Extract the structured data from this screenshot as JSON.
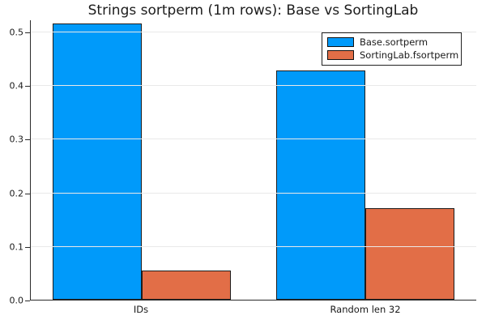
{
  "chart_data": {
    "type": "bar",
    "title": "Strings sortperm (1m rows): Base vs SortingLab",
    "categories": [
      "IDs",
      "Random len 32"
    ],
    "series": [
      {
        "name": "Base.sortperm",
        "color": "#009AFA",
        "values": [
          0.515,
          0.428
        ]
      },
      {
        "name": "SortingLab.fsortperm",
        "color": "#E26E47",
        "values": [
          0.054,
          0.17
        ]
      }
    ],
    "xlabel": "",
    "ylabel": "",
    "ylim": [
      0,
      0.523
    ],
    "yticks": [
      0.0,
      0.1,
      0.2,
      0.3,
      0.4,
      0.5
    ],
    "ytick_labels": [
      "0.0",
      "0.1",
      "0.2",
      "0.3",
      "0.4",
      "0.5"
    ],
    "grid": "horizontal",
    "gridline_color": "#e9e9e9",
    "bar_outline_color": "#1d1d1d",
    "legend_position": "top-right",
    "background_color": "#ffffff"
  }
}
